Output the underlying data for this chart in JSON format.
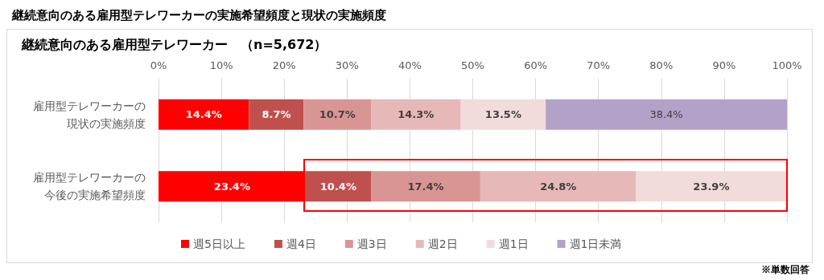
{
  "chart_data": {
    "type": "bar",
    "orientation": "horizontal",
    "stacked": true,
    "title": "継続意向のある雇用型テレワーカーの実施希望頻度と現状の実施頻度",
    "subtitle": "継続意向のある雇用型テレワーカー　（n=5,672）",
    "annotations": [
      "※単数回答"
    ],
    "categories": [
      "雇用型テレワーカーの現状の実施頻度",
      "雇用型テレワーカーの今後の実施希望頻度"
    ],
    "series": [
      {
        "name": "週5日以上",
        "color": "#ff0000",
        "values": [
          14.4,
          23.4
        ],
        "value_labels": [
          "14.4%",
          "23.4%"
        ]
      },
      {
        "name": "週4日",
        "color": "#c0504d",
        "values": [
          8.7,
          10.4
        ],
        "value_labels": [
          "8.7%",
          "10.4%"
        ]
      },
      {
        "name": "週3日",
        "color": "#d99594",
        "values": [
          10.7,
          17.4
        ],
        "value_labels": [
          "10.7%",
          "17.4%"
        ]
      },
      {
        "name": "週2日",
        "color": "#e6b9b8",
        "values": [
          14.3,
          24.8
        ],
        "value_labels": [
          "14.3%",
          "24.8%"
        ]
      },
      {
        "name": "週1日",
        "color": "#f2dcdb",
        "values": [
          13.5,
          23.9
        ],
        "value_labels": [
          "13.5%",
          "23.9%"
        ]
      },
      {
        "name": "週1日未満",
        "color": "#b3a2c7",
        "values": [
          38.4,
          null
        ],
        "value_labels": [
          "38.4%",
          null
        ]
      }
    ],
    "xlim": [
      0,
      100
    ],
    "xticks": [
      {
        "value": 0,
        "label": "0%"
      },
      {
        "value": 10,
        "label": "10%"
      },
      {
        "value": 20,
        "label": "20%"
      },
      {
        "value": 30,
        "label": "30%"
      },
      {
        "value": 40,
        "label": "40%"
      },
      {
        "value": 50,
        "label": "50%"
      },
      {
        "value": 60,
        "label": "60%"
      },
      {
        "value": 70,
        "label": "70%"
      },
      {
        "value": 80,
        "label": "80%"
      },
      {
        "value": 90,
        "label": "90%"
      },
      {
        "value": 100,
        "label": "100%"
      }
    ],
    "grid": "x",
    "legend": "bottom"
  }
}
